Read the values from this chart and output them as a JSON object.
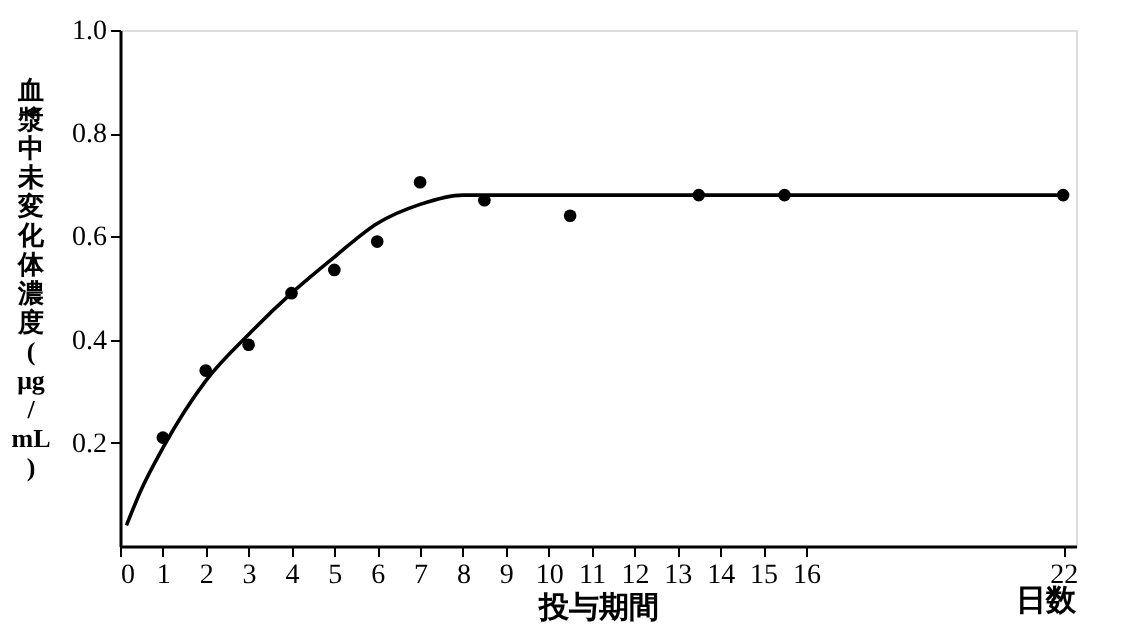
{
  "chart_data": {
    "type": "scatter",
    "ylabel": "血漿中未変化体濃度(μg/mL)",
    "xlabel": "投与期間",
    "xlim": [
      0,
      22.3
    ],
    "xticks": [
      0,
      1,
      2,
      3,
      4,
      5,
      6,
      7,
      8,
      9,
      10,
      11,
      12,
      13,
      14,
      15,
      16,
      22
    ],
    "ylim": [
      0,
      1.0
    ],
    "yticks": [
      0.2,
      0.4,
      0.6,
      0.8,
      {
        "value": 1.0,
        "label": "1.0"
      }
    ],
    "marker": "circle",
    "grid": false,
    "annotations": [
      "日数"
    ],
    "series": [
      {
        "color": "#000000",
        "x": [
          1,
          2,
          3,
          4,
          5,
          6,
          7,
          8.5,
          10.5,
          13.5,
          15.5,
          22
        ],
        "values": [
          0.21,
          0.34,
          0.39,
          0.49,
          0.535,
          0.59,
          0.705,
          0.67,
          0.64,
          0.68,
          0.68,
          0.68
        ]
      },
      {
        "type": "line",
        "marker": "none",
        "line_style": "solid",
        "color": "#000000",
        "x": [
          0.15,
          0.5,
          1,
          1.5,
          2,
          3,
          4,
          5,
          6,
          7,
          8,
          9,
          12,
          16,
          22
        ],
        "values": [
          0.04,
          0.11,
          0.19,
          0.26,
          0.32,
          0.41,
          0.49,
          0.56,
          0.625,
          0.662,
          0.68,
          0.68,
          0.68,
          0.68,
          0.68
        ]
      }
    ]
  }
}
